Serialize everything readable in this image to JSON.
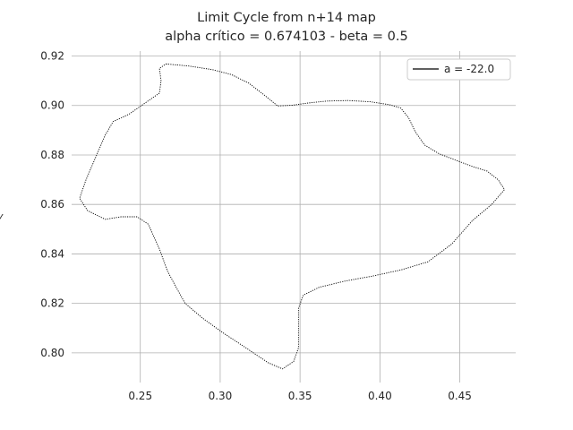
{
  "chart_data": {
    "type": "line",
    "title": "Limit Cycle from n+14 map",
    "subtitle": "alpha crítico = 0.674103 - beta = 0.5",
    "xlabel": "",
    "ylabel": "y",
    "xlim": [
      0.207,
      0.485
    ],
    "ylim": [
      0.788,
      0.922
    ],
    "xticks": [
      "0.25",
      "0.30",
      "0.35",
      "0.40",
      "0.45"
    ],
    "yticks": [
      "0.80",
      "0.82",
      "0.84",
      "0.86",
      "0.88",
      "0.90",
      "0.92"
    ],
    "grid": true,
    "legend": {
      "placement": "top-right",
      "label": "a = -22.0"
    },
    "series": [
      {
        "name": "a = -22.0",
        "points": [
          [
            0.266,
            0.9168
          ],
          [
            0.28,
            0.916
          ],
          [
            0.295,
            0.9145
          ],
          [
            0.307,
            0.9125
          ],
          [
            0.318,
            0.909
          ],
          [
            0.328,
            0.904
          ],
          [
            0.336,
            0.8998
          ],
          [
            0.345,
            0.9001
          ],
          [
            0.355,
            0.901
          ],
          [
            0.367,
            0.9018
          ],
          [
            0.38,
            0.902
          ],
          [
            0.394,
            0.9015
          ],
          [
            0.406,
            0.9003
          ],
          [
            0.413,
            0.899
          ],
          [
            0.418,
            0.895
          ],
          [
            0.422,
            0.8895
          ],
          [
            0.428,
            0.884
          ],
          [
            0.437,
            0.8805
          ],
          [
            0.447,
            0.878
          ],
          [
            0.458,
            0.8753
          ],
          [
            0.467,
            0.8735
          ],
          [
            0.474,
            0.87
          ],
          [
            0.478,
            0.866
          ],
          [
            0.47,
            0.86
          ],
          [
            0.458,
            0.8535
          ],
          [
            0.445,
            0.844
          ],
          [
            0.43,
            0.8368
          ],
          [
            0.413,
            0.8335
          ],
          [
            0.395,
            0.831
          ],
          [
            0.378,
            0.829
          ],
          [
            0.362,
            0.8265
          ],
          [
            0.352,
            0.8233
          ],
          [
            0.349,
            0.818
          ],
          [
            0.349,
            0.81
          ],
          [
            0.349,
            0.802
          ],
          [
            0.346,
            0.7965
          ],
          [
            0.339,
            0.7935
          ],
          [
            0.33,
            0.796
          ],
          [
            0.315,
            0.8025
          ],
          [
            0.302,
            0.808
          ],
          [
            0.289,
            0.814
          ],
          [
            0.278,
            0.82
          ],
          [
            0.272,
            0.827
          ],
          [
            0.267,
            0.833
          ],
          [
            0.262,
            0.842
          ],
          [
            0.255,
            0.852
          ],
          [
            0.248,
            0.855
          ],
          [
            0.238,
            0.855
          ],
          [
            0.228,
            0.854
          ],
          [
            0.217,
            0.8575
          ],
          [
            0.212,
            0.8625
          ],
          [
            0.216,
            0.87
          ],
          [
            0.222,
            0.879
          ],
          [
            0.228,
            0.888
          ],
          [
            0.233,
            0.8935
          ],
          [
            0.243,
            0.8965
          ],
          [
            0.253,
            0.901
          ],
          [
            0.262,
            0.905
          ],
          [
            0.263,
            0.91
          ],
          [
            0.262,
            0.915
          ],
          [
            0.266,
            0.9168
          ]
        ]
      }
    ]
  }
}
